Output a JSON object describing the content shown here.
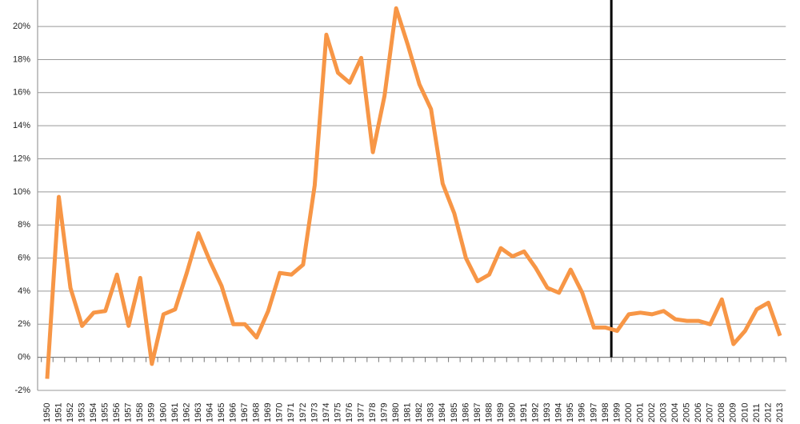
{
  "chart_data": {
    "type": "line",
    "categories": [
      "1950",
      "1951",
      "1952",
      "1953",
      "1954",
      "1955",
      "1956",
      "1957",
      "1958",
      "1959",
      "1960",
      "1961",
      "1962",
      "1963",
      "1964",
      "1965",
      "1966",
      "1967",
      "1968",
      "1969",
      "1970",
      "1971",
      "1972",
      "1973",
      "1974",
      "1975",
      "1976",
      "1977",
      "1978",
      "1979",
      "1980",
      "1981",
      "1982",
      "1983",
      "1984",
      "1985",
      "1986",
      "1987",
      "1988",
      "1989",
      "1990",
      "1991",
      "1992",
      "1993",
      "1994",
      "1995",
      "1996",
      "1997",
      "1998",
      "1999",
      "2000",
      "2001",
      "2002",
      "2003",
      "2004",
      "2005",
      "2006",
      "2007",
      "2008",
      "2009",
      "2010",
      "2011",
      "2012",
      "2013"
    ],
    "series": [
      {
        "color": "#f79646",
        "values": [
          -1.3,
          9.7,
          4.2,
          1.9,
          2.7,
          2.8,
          5.0,
          1.9,
          4.8,
          -0.4,
          2.6,
          2.9,
          5.1,
          7.5,
          5.8,
          4.3,
          2.0,
          2.0,
          1.2,
          2.8,
          5.1,
          5.0,
          5.6,
          10.4,
          19.5,
          17.2,
          16.6,
          18.1,
          12.4,
          15.8,
          21.1,
          18.9,
          16.5,
          15.0,
          10.5,
          8.7,
          6.0,
          4.6,
          5.0,
          6.6,
          6.1,
          6.4,
          5.4,
          4.2,
          3.9,
          5.3,
          3.9,
          1.8,
          1.8,
          1.6,
          2.6,
          2.7,
          2.6,
          2.8,
          2.3,
          2.2,
          2.2,
          2.0,
          3.5,
          0.8,
          1.6,
          2.9,
          3.3,
          1.3
        ]
      }
    ],
    "ylim": [
      -2,
      21.6
    ],
    "yticks": [
      {
        "value": -2,
        "label": "-2%"
      },
      {
        "value": 0,
        "label": "0%"
      },
      {
        "value": 2,
        "label": "2%"
      },
      {
        "value": 4,
        "label": "4%"
      },
      {
        "value": 6,
        "label": "6%"
      },
      {
        "value": 8,
        "label": "8%"
      },
      {
        "value": 10,
        "label": "10%"
      },
      {
        "value": 12,
        "label": "12%"
      },
      {
        "value": 14,
        "label": "14%"
      },
      {
        "value": 16,
        "label": "16%"
      },
      {
        "value": 18,
        "label": "18%"
      },
      {
        "value": 20,
        "label": "20%"
      }
    ],
    "grid": true,
    "divider_after_category": "1998"
  }
}
